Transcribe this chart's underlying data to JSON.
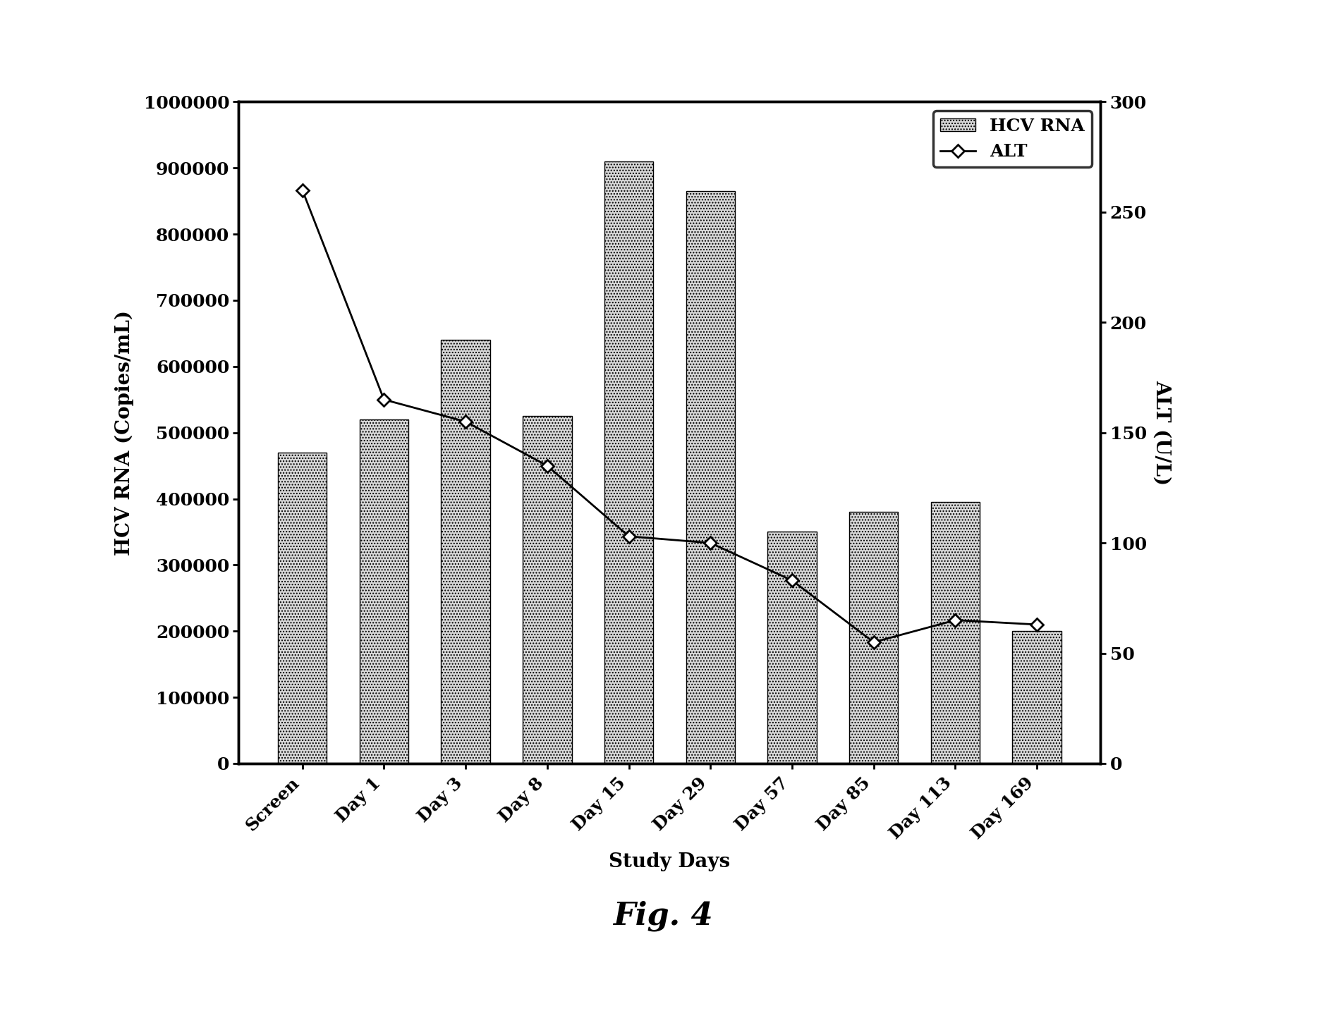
{
  "categories": [
    "Screen",
    "Day 1",
    "Day 3",
    "Day 8",
    "Day 15",
    "Day 29",
    "Day 57",
    "Day 85",
    "Day 113",
    "Day 169"
  ],
  "hcv_rna": [
    470000,
    520000,
    640000,
    525000,
    910000,
    865000,
    350000,
    380000,
    395000,
    200000
  ],
  "alt": [
    260,
    165,
    155,
    135,
    103,
    100,
    83,
    55,
    65,
    63
  ],
  "bar_color": "#d8d8d8",
  "bar_hatch": "....",
  "line_color": "#000000",
  "marker": "D",
  "ylabel_left": "HCV RNA (Copies/mL)",
  "ylabel_right": "ALT (U/L)",
  "xlabel": "Study Days",
  "ylim_left": [
    0,
    1000000
  ],
  "ylim_right": [
    0,
    300
  ],
  "yticks_left": [
    0,
    100000,
    200000,
    300000,
    400000,
    500000,
    600000,
    700000,
    800000,
    900000,
    1000000
  ],
  "yticks_right": [
    0,
    50,
    100,
    150,
    200,
    250,
    300
  ],
  "legend_labels": [
    "HCV RNA",
    "ALT"
  ],
  "figure_caption": "Fig. 4",
  "background_color": "#ffffff",
  "axis_fontsize": 20,
  "tick_fontsize": 18,
  "caption_fontsize": 32,
  "ylabel_fontsize": 20,
  "legend_fontsize": 18
}
